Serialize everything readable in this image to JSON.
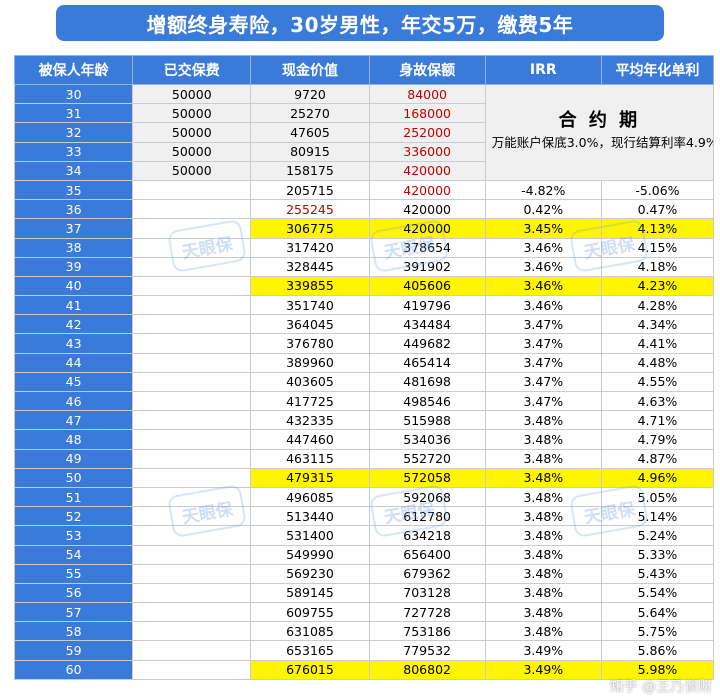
{
  "title": "增额终身寿险，30岁男性，年交5万，缴费5年",
  "columns": [
    "被保人年龄",
    "已交保费",
    "现金价值",
    "身故保额",
    "IRR",
    "平均年化单利"
  ],
  "contract": {
    "title": "合 约 期",
    "note": "万能账户保底3.0%，现行结算利率4.9%"
  },
  "watermark": "天眼保",
  "footer_mark": "知乎 @王乃谈财",
  "colors": {
    "header": "#3a7ad9",
    "highlight": "#fff500",
    "red_text": "#c00000",
    "grey": "#f0f0f0"
  },
  "rows": [
    {
      "age": "30",
      "premium": "50000",
      "cash": "9720",
      "death": "84000",
      "irr": "",
      "simple": "",
      "cash_red": false,
      "death_red": true,
      "hl": false
    },
    {
      "age": "31",
      "premium": "50000",
      "cash": "25270",
      "death": "168000",
      "irr": "",
      "simple": "",
      "cash_red": false,
      "death_red": true,
      "hl": false
    },
    {
      "age": "32",
      "premium": "50000",
      "cash": "47605",
      "death": "252000",
      "irr": "",
      "simple": "",
      "cash_red": false,
      "death_red": true,
      "hl": false
    },
    {
      "age": "33",
      "premium": "50000",
      "cash": "80915",
      "death": "336000",
      "irr": "",
      "simple": "",
      "cash_red": false,
      "death_red": true,
      "hl": false
    },
    {
      "age": "34",
      "premium": "50000",
      "cash": "158175",
      "death": "420000",
      "irr": "",
      "simple": "",
      "cash_red": false,
      "death_red": true,
      "hl": false
    },
    {
      "age": "35",
      "premium": "",
      "cash": "205715",
      "death": "420000",
      "irr": "-4.82%",
      "simple": "-5.06%",
      "cash_red": false,
      "death_red": true,
      "hl": false
    },
    {
      "age": "36",
      "premium": "",
      "cash": "255245",
      "death": "420000",
      "irr": "0.42%",
      "simple": "0.47%",
      "cash_red": true,
      "death_red": false,
      "hl": false
    },
    {
      "age": "37",
      "premium": "",
      "cash": "306775",
      "death": "420000",
      "irr": "3.45%",
      "simple": "4.13%",
      "cash_red": false,
      "death_red": false,
      "hl": true
    },
    {
      "age": "38",
      "premium": "",
      "cash": "317420",
      "death": "378654",
      "irr": "3.46%",
      "simple": "4.15%",
      "cash_red": false,
      "death_red": false,
      "hl": false
    },
    {
      "age": "39",
      "premium": "",
      "cash": "328445",
      "death": "391902",
      "irr": "3.46%",
      "simple": "4.18%",
      "cash_red": false,
      "death_red": false,
      "hl": false
    },
    {
      "age": "40",
      "premium": "",
      "cash": "339855",
      "death": "405606",
      "irr": "3.46%",
      "simple": "4.23%",
      "cash_red": false,
      "death_red": false,
      "hl": true
    },
    {
      "age": "41",
      "premium": "",
      "cash": "351740",
      "death": "419796",
      "irr": "3.46%",
      "simple": "4.28%",
      "cash_red": false,
      "death_red": false,
      "hl": false
    },
    {
      "age": "42",
      "premium": "",
      "cash": "364045",
      "death": "434484",
      "irr": "3.47%",
      "simple": "4.34%",
      "cash_red": false,
      "death_red": false,
      "hl": false
    },
    {
      "age": "43",
      "premium": "",
      "cash": "376780",
      "death": "449682",
      "irr": "3.47%",
      "simple": "4.41%",
      "cash_red": false,
      "death_red": false,
      "hl": false
    },
    {
      "age": "44",
      "premium": "",
      "cash": "389960",
      "death": "465414",
      "irr": "3.47%",
      "simple": "4.48%",
      "cash_red": false,
      "death_red": false,
      "hl": false
    },
    {
      "age": "45",
      "premium": "",
      "cash": "403605",
      "death": "481698",
      "irr": "3.47%",
      "simple": "4.55%",
      "cash_red": false,
      "death_red": false,
      "hl": false
    },
    {
      "age": "46",
      "premium": "",
      "cash": "417725",
      "death": "498546",
      "irr": "3.47%",
      "simple": "4.63%",
      "cash_red": false,
      "death_red": false,
      "hl": false
    },
    {
      "age": "47",
      "premium": "",
      "cash": "432335",
      "death": "515988",
      "irr": "3.48%",
      "simple": "4.71%",
      "cash_red": false,
      "death_red": false,
      "hl": false
    },
    {
      "age": "48",
      "premium": "",
      "cash": "447460",
      "death": "534036",
      "irr": "3.48%",
      "simple": "4.79%",
      "cash_red": false,
      "death_red": false,
      "hl": false
    },
    {
      "age": "49",
      "premium": "",
      "cash": "463115",
      "death": "552720",
      "irr": "3.48%",
      "simple": "4.87%",
      "cash_red": false,
      "death_red": false,
      "hl": false
    },
    {
      "age": "50",
      "premium": "",
      "cash": "479315",
      "death": "572058",
      "irr": "3.48%",
      "simple": "4.96%",
      "cash_red": false,
      "death_red": false,
      "hl": true
    },
    {
      "age": "51",
      "premium": "",
      "cash": "496085",
      "death": "592068",
      "irr": "3.48%",
      "simple": "5.05%",
      "cash_red": false,
      "death_red": false,
      "hl": false
    },
    {
      "age": "52",
      "premium": "",
      "cash": "513440",
      "death": "612780",
      "irr": "3.48%",
      "simple": "5.14%",
      "cash_red": false,
      "death_red": false,
      "hl": false
    },
    {
      "age": "53",
      "premium": "",
      "cash": "531400",
      "death": "634218",
      "irr": "3.48%",
      "simple": "5.24%",
      "cash_red": false,
      "death_red": false,
      "hl": false
    },
    {
      "age": "54",
      "premium": "",
      "cash": "549990",
      "death": "656400",
      "irr": "3.48%",
      "simple": "5.33%",
      "cash_red": false,
      "death_red": false,
      "hl": false
    },
    {
      "age": "55",
      "premium": "",
      "cash": "569230",
      "death": "679362",
      "irr": "3.48%",
      "simple": "5.43%",
      "cash_red": false,
      "death_red": false,
      "hl": false
    },
    {
      "age": "56",
      "premium": "",
      "cash": "589145",
      "death": "703128",
      "irr": "3.48%",
      "simple": "5.54%",
      "cash_red": false,
      "death_red": false,
      "hl": false
    },
    {
      "age": "57",
      "premium": "",
      "cash": "609755",
      "death": "727728",
      "irr": "3.48%",
      "simple": "5.64%",
      "cash_red": false,
      "death_red": false,
      "hl": false
    },
    {
      "age": "58",
      "premium": "",
      "cash": "631085",
      "death": "753186",
      "irr": "3.48%",
      "simple": "5.75%",
      "cash_red": false,
      "death_red": false,
      "hl": false
    },
    {
      "age": "59",
      "premium": "",
      "cash": "653165",
      "death": "779532",
      "irr": "3.49%",
      "simple": "5.86%",
      "cash_red": false,
      "death_red": false,
      "hl": false
    },
    {
      "age": "60",
      "premium": "",
      "cash": "676015",
      "death": "806802",
      "irr": "3.49%",
      "simple": "5.98%",
      "cash_red": false,
      "death_red": false,
      "hl": true
    }
  ]
}
